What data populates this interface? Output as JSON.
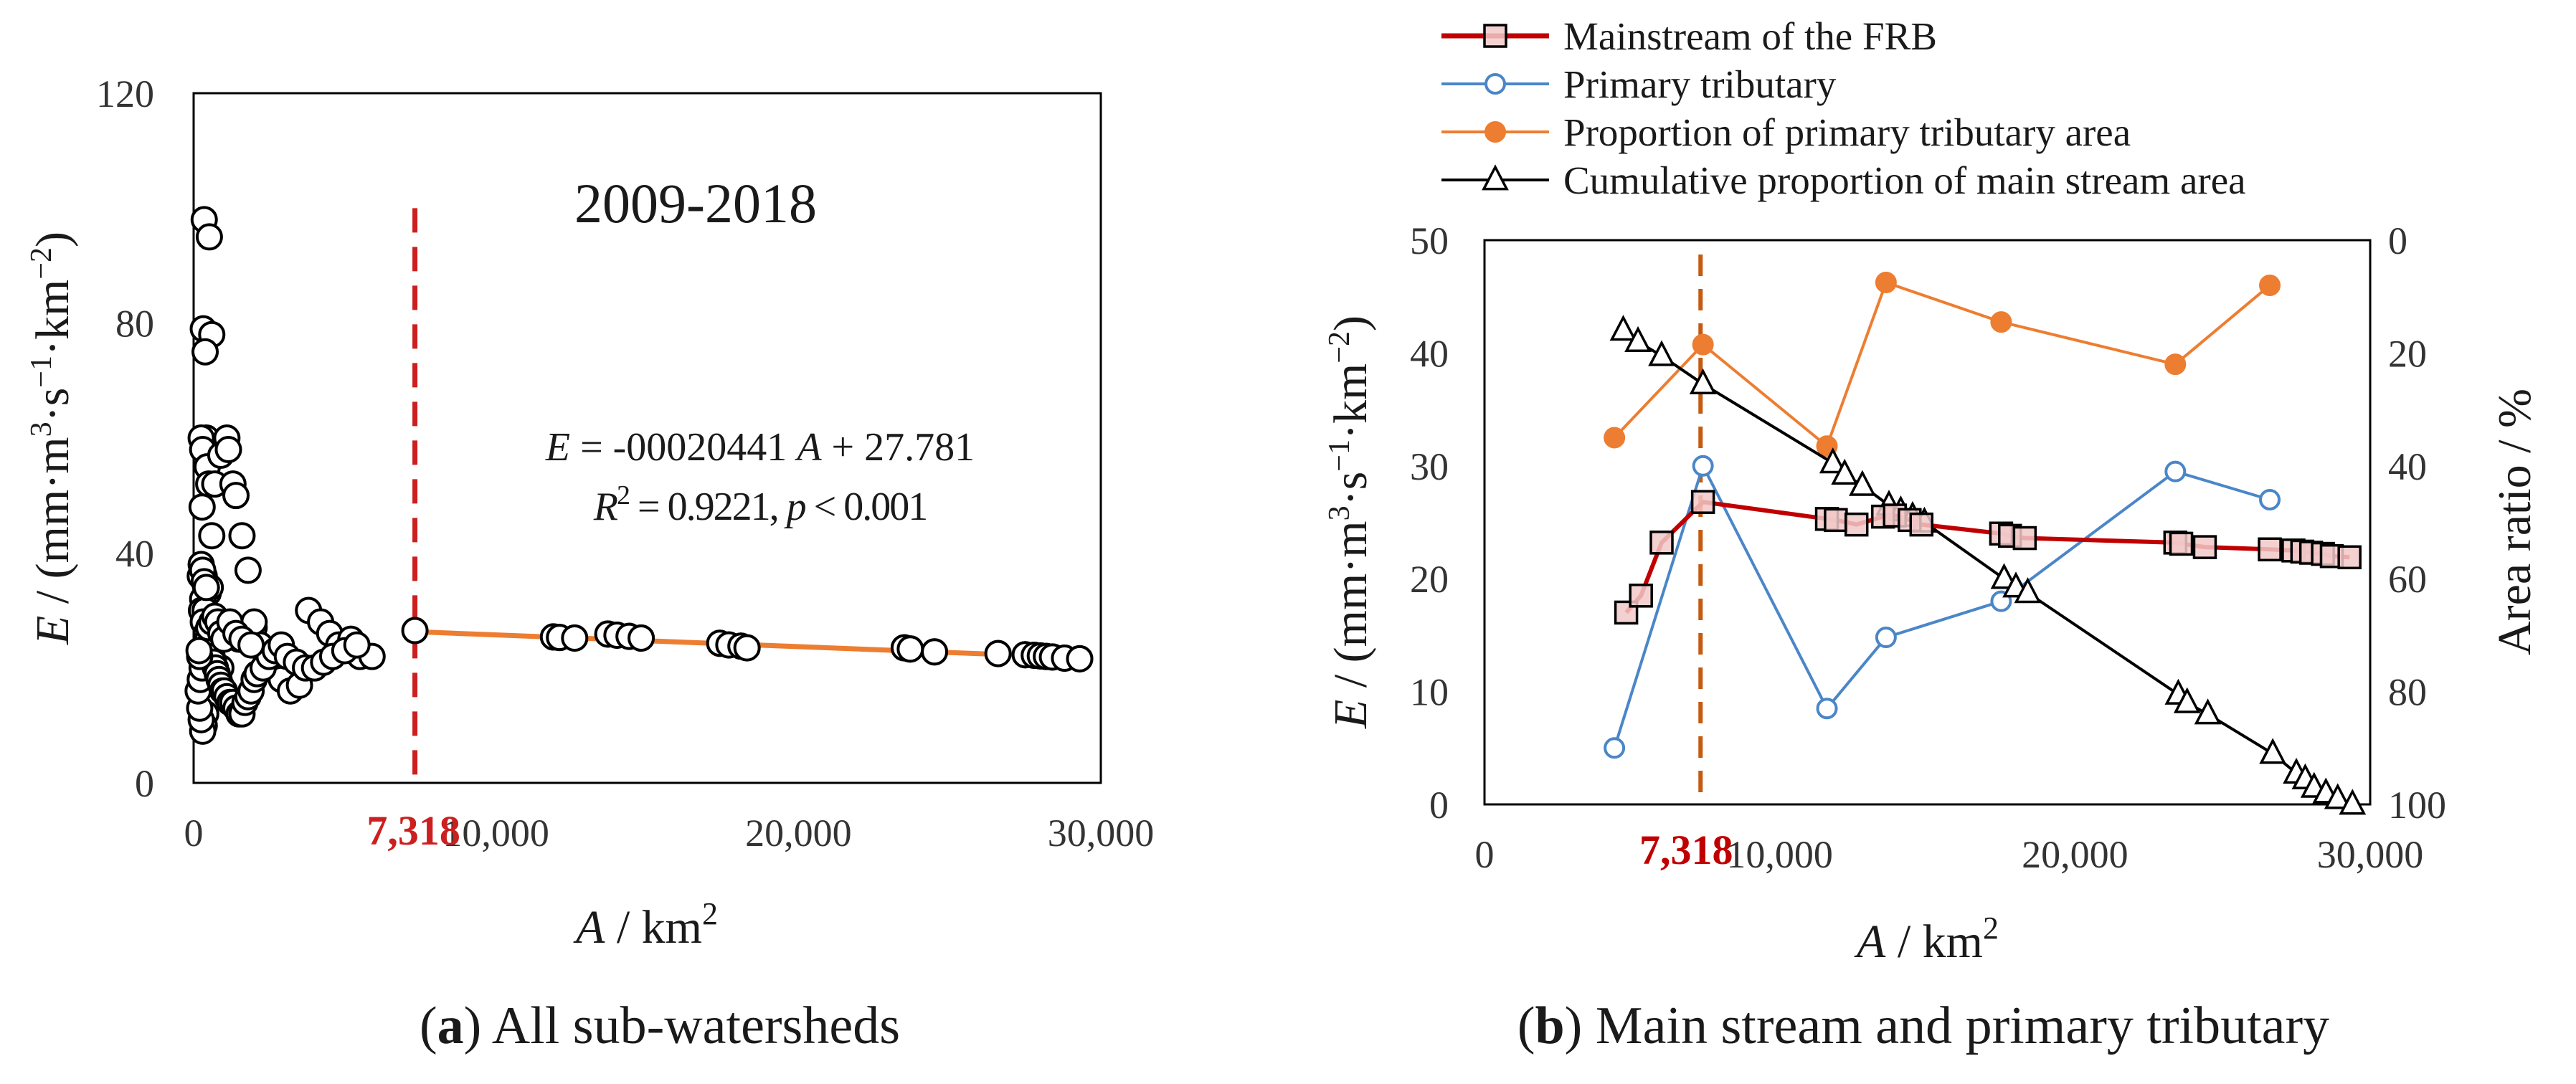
{
  "chart_data": [
    {
      "type": "scatter",
      "panel_caption_letter": "a",
      "panel_caption_text": "All sub-watersheds",
      "period_label": "2009-2018",
      "equation": {
        "lhs": "E",
        "eq": " = -00020441 ",
        "var": "A",
        "rest": " + 27.781"
      },
      "r2": {
        "sym": "R",
        "sup": "2",
        "rest": " = 0.9221, ",
        "p": "p",
        "tail": " < 0.001"
      },
      "threshold": {
        "value": 7318,
        "label": "7,318",
        "color": "#cc1f1f"
      },
      "xlabel": {
        "sym": "A",
        "unit": " / km",
        "sup": "2"
      },
      "ylabel": {
        "sym": "E",
        "unit": " / (mm·m",
        "s1": "3",
        "u2": "·s",
        "s2": "−1",
        "u3": "·km",
        "s3": "−2",
        "u4": ")"
      },
      "xlim": [
        0,
        30000
      ],
      "ylim": [
        0,
        120
      ],
      "xticks": [
        0,
        10000,
        20000,
        30000
      ],
      "xtick_labels": [
        "0",
        "10,000",
        "20,000",
        "30,000"
      ],
      "yticks": [
        0,
        40,
        80,
        120
      ],
      "ytick_labels": [
        "0",
        "40",
        "80",
        "120"
      ],
      "fit_line": {
        "x": [
          7318,
          29300
        ],
        "y": [
          26.3,
          21.8
        ],
        "color": "#ed7d31"
      },
      "points": {
        "x": [
          350,
          520,
          320,
          600,
          380,
          420,
          250,
          300,
          450,
          500,
          280,
          700,
          900,
          1100,
          1150,
          1300,
          1400,
          1600,
          600,
          350,
          220,
          400,
          480,
          550,
          300,
          260,
          380,
          650,
          800,
          320,
          1000,
          1200,
          1500,
          1700,
          2000,
          2200,
          2400,
          2600,
          2900,
          3200,
          3500,
          3800,
          4200,
          4500,
          4800,
          5200,
          5500,
          5900,
          2000,
          1800,
          900,
          700,
          600,
          500,
          450,
          400,
          350,
          300,
          250,
          200,
          150,
          220,
          280,
          330,
          380,
          420,
          470,
          510,
          560,
          610,
          660,
          720,
          780,
          840,
          900,
          960,
          1020,
          1100,
          1200,
          1300,
          1400,
          1500,
          1600,
          1700,
          1800,
          1900,
          2000,
          2100,
          2300,
          2500,
          2700,
          2900,
          3100,
          3400,
          3700,
          4000,
          4300,
          4600,
          5000,
          5400,
          200,
          180,
          250,
          300,
          350,
          420,
          500,
          600,
          700,
          800,
          900,
          1000,
          1200,
          1400,
          1600,
          1900,
          7318,
          11900,
          12100,
          12600,
          13700,
          14000,
          14400,
          14800,
          17400,
          17700,
          18100,
          18300,
          23500,
          23700,
          24500,
          26600,
          27500,
          27800,
          28000,
          28200,
          28400,
          28800,
          29300
        ],
        "y": [
          98,
          95,
          79,
          78,
          75,
          60,
          60,
          58,
          55,
          52,
          48,
          52,
          57,
          60,
          58,
          52,
          50,
          43,
          43,
          36,
          36,
          34,
          33,
          34,
          32,
          30,
          30,
          28,
          27,
          28,
          26,
          26,
          25,
          26,
          27,
          24,
          22,
          20,
          18,
          16,
          17,
          30,
          28,
          26,
          24,
          25,
          22,
          22,
          28,
          37,
          20,
          18,
          17,
          15,
          14,
          12,
          10,
          9,
          11,
          13,
          16,
          18,
          20,
          22,
          24,
          26,
          25,
          24,
          23,
          22,
          21,
          20,
          19,
          18,
          17,
          16,
          16,
          15,
          14,
          14,
          13,
          12,
          12,
          14,
          15,
          16,
          18,
          19,
          20,
          22,
          23,
          24,
          22,
          21,
          20,
          20,
          21,
          22,
          23,
          24,
          22,
          23,
          38,
          37,
          35,
          34,
          27,
          28,
          29,
          28,
          26,
          25,
          28,
          26,
          25,
          24,
          26.5,
          25.4,
          25.3,
          25.2,
          25.9,
          25.7,
          25.5,
          25.2,
          24.3,
          24.0,
          23.8,
          23.5,
          23.5,
          23.3,
          22.8,
          22.5,
          22.3,
          22.2,
          22.1,
          22.0,
          21.9,
          21.7,
          21.6
        ]
      }
    },
    {
      "type": "line",
      "panel_caption_letter": "b",
      "panel_caption_text": "Main stream and primary tributary",
      "threshold": {
        "value": 7318,
        "label": "7,318",
        "color": "#c55a11"
      },
      "xlabel": {
        "sym": "A",
        "unit": " / km",
        "sup": "2"
      },
      "ylabel": {
        "sym": "E",
        "unit": " / (mm·m",
        "s1": "3",
        "u2": "·s",
        "s2": "−1",
        "u3": "·km",
        "s3": "−2",
        "u4": ")"
      },
      "y2label": "Area ratio / %",
      "xlim": [
        0,
        30000
      ],
      "ylim": [
        0,
        50
      ],
      "y2lim": [
        0,
        100
      ],
      "y2_inverted": true,
      "xticks": [
        0,
        10000,
        20000,
        30000
      ],
      "xtick_labels": [
        "0",
        "10,000",
        "20,000",
        "30,000"
      ],
      "yticks": [
        0,
        10,
        20,
        30,
        40,
        50
      ],
      "ytick_labels": [
        "0",
        "10",
        "20",
        "30",
        "40",
        "50"
      ],
      "y2ticks": [
        0,
        20,
        40,
        60,
        80,
        100
      ],
      "y2tick_labels": [
        "0",
        "20",
        "40",
        "60",
        "80",
        "100"
      ],
      "legend_position": "top",
      "series": [
        {
          "name": "Mainstream of the FRB",
          "axis": "left",
          "color": "#c00000",
          "marker": "square",
          "x": [
            4800,
            5300,
            6000,
            7400,
            11600,
            11900,
            12600,
            13500,
            13900,
            14400,
            14800,
            17500,
            17800,
            18300,
            23400,
            23600,
            24400,
            26600,
            27400,
            27700,
            28000,
            28400,
            28700,
            29300
          ],
          "y": [
            17,
            18.5,
            23.2,
            26.8,
            25.3,
            25.2,
            24.8,
            25.5,
            25.6,
            25.2,
            24.8,
            24.0,
            23.8,
            23.6,
            23.2,
            23.1,
            22.8,
            22.6,
            22.5,
            22.4,
            22.3,
            22.2,
            22.0,
            21.9
          ]
        },
        {
          "name": "Primary tributary",
          "axis": "left",
          "color": "#4a86c8",
          "marker": "circle-open",
          "x": [
            4400,
            7400,
            11600,
            13600,
            17500,
            23400,
            26600
          ],
          "y": [
            5,
            30,
            8.5,
            14.8,
            18,
            29.5,
            27
          ]
        },
        {
          "name": "Proportion of primary tributary area",
          "axis": "right",
          "color": "#ed7d31",
          "marker": "circle-filled",
          "x": [
            4400,
            7400,
            11600,
            13600,
            17500,
            23400,
            26600
          ],
          "y": [
            35,
            18.5,
            36.5,
            7.5,
            14.5,
            22,
            8
          ]
        },
        {
          "name": "Cumulative proportion of main stream area",
          "axis": "right",
          "color": "#000000",
          "marker": "triangle",
          "x": [
            4700,
            5200,
            6000,
            7400,
            11800,
            12200,
            12800,
            13700,
            14100,
            14500,
            14900,
            17600,
            18000,
            18400,
            23500,
            23800,
            24500,
            26700,
            27500,
            27800,
            28100,
            28500,
            28900,
            29400
          ],
          "y": [
            16,
            18,
            20.5,
            25.5,
            39.5,
            41.5,
            43.5,
            47,
            48,
            49,
            50,
            60,
            61.5,
            62.5,
            80.5,
            82,
            84,
            91,
            94.5,
            95.5,
            97,
            98,
            99,
            100
          ]
        }
      ]
    }
  ]
}
